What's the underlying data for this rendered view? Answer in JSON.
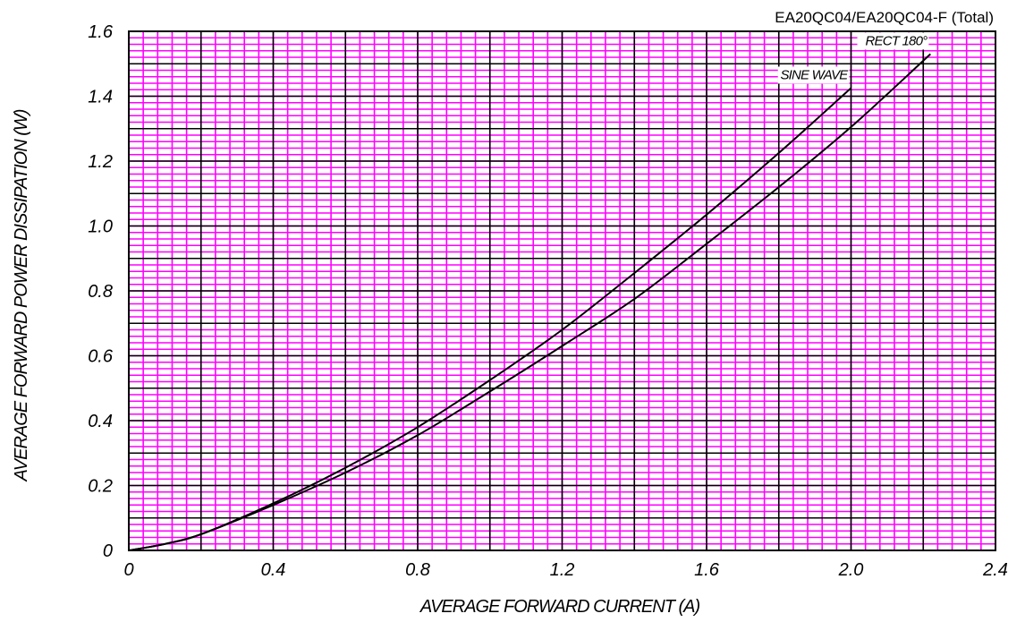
{
  "chart_data": {
    "type": "line",
    "title": "EA20QC04/EA20QC04-F (Total)",
    "xlabel": "AVERAGE FORWARD CURRENT (A)",
    "ylabel": "AVERAGE FORWARD POWER DISSIPATION (W)",
    "xlim": [
      0,
      2.4
    ],
    "ylim": [
      0,
      1.6
    ],
    "x_ticks": [
      "0",
      "0.4",
      "0.8",
      "1.2",
      "1.6",
      "2.0",
      "2.4"
    ],
    "y_ticks": [
      "0",
      "0.2",
      "0.4",
      "0.6",
      "0.8",
      "1.0",
      "1.2",
      "1.4",
      "1.6"
    ],
    "grid": true,
    "grid_major_color": "#000000",
    "grid_minor_color": "#ff00ff",
    "series": [
      {
        "name": "RECT 180°",
        "x": [
          0,
          0.1,
          0.2,
          0.4,
          0.6,
          0.8,
          1.0,
          1.2,
          1.4,
          1.6,
          1.8,
          2.0,
          2.22
        ],
        "y": [
          0,
          0.02,
          0.05,
          0.14,
          0.24,
          0.355,
          0.49,
          0.63,
          0.775,
          0.945,
          1.12,
          1.305,
          1.53
        ]
      },
      {
        "name": "SINE WAVE",
        "x": [
          0,
          0.1,
          0.2,
          0.4,
          0.6,
          0.8,
          1.0,
          1.2,
          1.4,
          1.6,
          1.8,
          2.0
        ],
        "y": [
          0,
          0.02,
          0.05,
          0.145,
          0.255,
          0.38,
          0.525,
          0.68,
          0.855,
          1.035,
          1.225,
          1.425
        ]
      }
    ]
  }
}
